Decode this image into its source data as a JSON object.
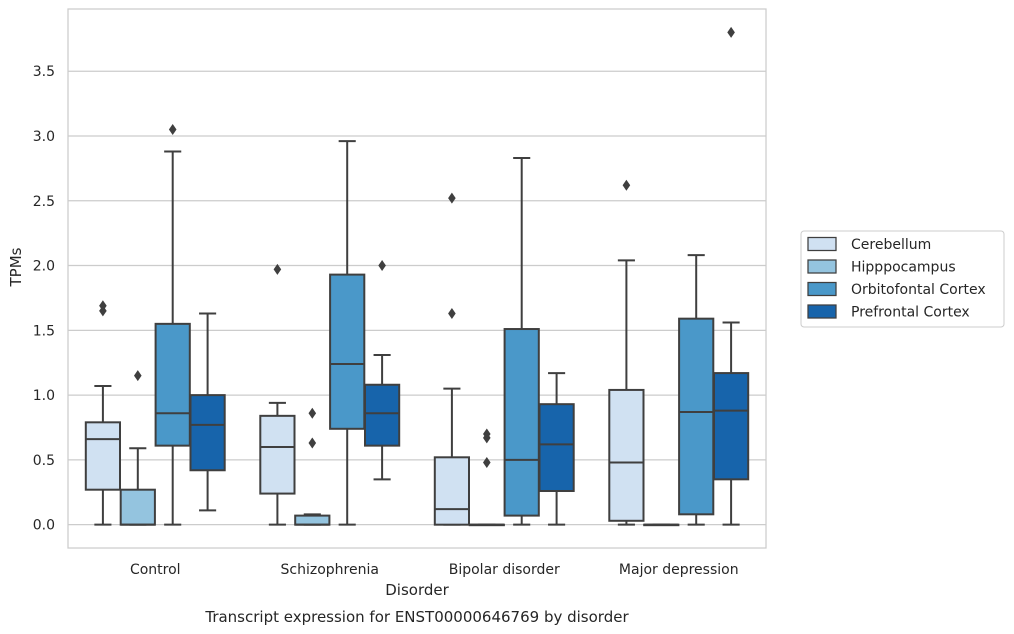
{
  "chart_data": {
    "type": "box",
    "title": "",
    "caption": "Transcript expression for ENST00000646769 by disorder",
    "xlabel": "Disorder",
    "ylabel": "TPMs",
    "ylim": [
      -0.18,
      3.98
    ],
    "yticks": [
      0.0,
      0.5,
      1.0,
      1.5,
      2.0,
      2.5,
      3.0,
      3.5
    ],
    "ytick_labels": [
      "0.0",
      "0.5",
      "1.0",
      "1.5",
      "2.0",
      "2.5",
      "3.0",
      "3.5"
    ],
    "grid": "horizontal",
    "legend_position": "right",
    "categories": [
      "Control",
      "Schizophrenia",
      "Bipolar disorder",
      "Major depression"
    ],
    "series": [
      {
        "name": "Cerebellum",
        "color": "#d0e1f2",
        "boxes": [
          {
            "whislo": 0.0,
            "q1": 0.27,
            "med": 0.66,
            "q3": 0.79,
            "whishi": 1.07,
            "fliers": [
              1.65,
              1.69
            ]
          },
          {
            "whislo": 0.0,
            "q1": 0.24,
            "med": 0.6,
            "q3": 0.84,
            "whishi": 0.94,
            "fliers": [
              1.97
            ]
          },
          {
            "whislo": 0.0,
            "q1": 0.0,
            "med": 0.12,
            "q3": 0.52,
            "whishi": 1.05,
            "fliers": [
              1.63,
              2.52
            ]
          },
          {
            "whislo": 0.0,
            "q1": 0.03,
            "med": 0.48,
            "q3": 1.04,
            "whishi": 2.04,
            "fliers": [
              2.62
            ]
          }
        ]
      },
      {
        "name": "Hipppocampus",
        "color": "#94c4df",
        "boxes": [
          {
            "whislo": 0.0,
            "q1": 0.0,
            "med": 0.0,
            "q3": 0.27,
            "whishi": 0.59,
            "fliers": [
              1.15
            ]
          },
          {
            "whislo": 0.0,
            "q1": 0.0,
            "med": 0.0,
            "q3": 0.07,
            "whishi": 0.08,
            "fliers": [
              0.63,
              0.86
            ]
          },
          {
            "whislo": 0.0,
            "q1": 0.0,
            "med": 0.0,
            "q3": 0.0,
            "whishi": 0.0,
            "fliers": [
              0.48,
              0.67,
              0.7
            ]
          },
          {
            "whislo": 0.0,
            "q1": 0.0,
            "med": 0.0,
            "q3": 0.0,
            "whishi": 0.0,
            "fliers": []
          }
        ]
      },
      {
        "name": "Orbitofontal Cortex",
        "color": "#4a98c9",
        "boxes": [
          {
            "whislo": 0.0,
            "q1": 0.61,
            "med": 0.86,
            "q3": 1.55,
            "whishi": 2.88,
            "fliers": [
              3.05
            ]
          },
          {
            "whislo": 0.0,
            "q1": 0.74,
            "med": 1.24,
            "q3": 1.93,
            "whishi": 2.96,
            "fliers": []
          },
          {
            "whislo": 0.0,
            "q1": 0.07,
            "med": 0.5,
            "q3": 1.51,
            "whishi": 2.83,
            "fliers": []
          },
          {
            "whislo": 0.0,
            "q1": 0.08,
            "med": 0.87,
            "q3": 1.59,
            "whishi": 2.08,
            "fliers": []
          }
        ]
      },
      {
        "name": "Prefrontal Cortex",
        "color": "#1764ab",
        "boxes": [
          {
            "whislo": 0.11,
            "q1": 0.42,
            "med": 0.77,
            "q3": 1.0,
            "whishi": 1.63,
            "fliers": []
          },
          {
            "whislo": 0.35,
            "q1": 0.61,
            "med": 0.86,
            "q3": 1.08,
            "whishi": 1.31,
            "fliers": [
              2.0
            ]
          },
          {
            "whislo": 0.0,
            "q1": 0.26,
            "med": 0.62,
            "q3": 0.93,
            "whishi": 1.17,
            "fliers": []
          },
          {
            "whislo": 0.0,
            "q1": 0.35,
            "med": 0.88,
            "q3": 1.17,
            "whishi": 1.56,
            "fliers": [
              3.8
            ]
          }
        ]
      }
    ]
  }
}
